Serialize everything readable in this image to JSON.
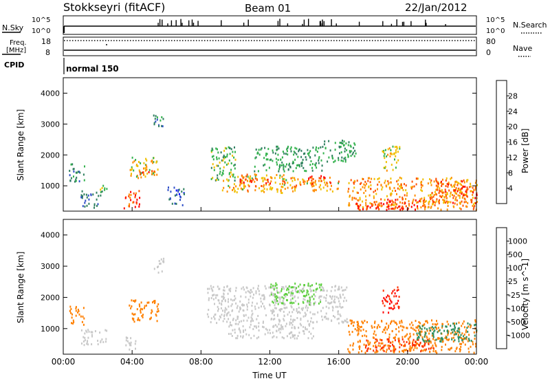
{
  "header": {
    "station": "Stokkseyri (fitACF)",
    "beam": "Beam 01",
    "date": "22/Jan/2012"
  },
  "top_panels": {
    "nsky": {
      "label": "N.Sky",
      "ticks_left": [
        "10^5",
        "10^0"
      ],
      "ticks_right": [
        "10^5",
        "10^0"
      ],
      "right_label": "N.Search"
    },
    "freq": {
      "label_top": "Freq.",
      "label_unit": "[MHz]",
      "ticks_left": [
        "18",
        "8"
      ],
      "ticks_right": [
        "80",
        "0"
      ],
      "right_label": "Nave"
    },
    "cpid": {
      "label": "CPID",
      "value": "normal 150"
    }
  },
  "chart_data": [
    {
      "type": "heatmap",
      "name": "power",
      "ylabel": "Slant Range [km]",
      "xlabel": "",
      "xlim": [
        "00:00",
        "00:00"
      ],
      "ylim": [
        180,
        4500
      ],
      "yticks": [
        1000,
        2000,
        3000,
        4000
      ],
      "xtick_labels": [
        "00:00",
        "04:00",
        "08:00",
        "12:00",
        "16:00",
        "20:00",
        "00:00"
      ],
      "colorbar": {
        "label": "Power [dB]",
        "ticks": [
          4,
          8,
          12,
          16,
          20,
          24,
          28
        ],
        "colors": [
          "#0000ff",
          "#2f4fc8",
          "#2f7f5f",
          "#33b24d",
          "#f0c000",
          "#ff8c00",
          "#ff5000",
          "#ff0000"
        ]
      },
      "echo_regions": [
        {
          "t0": 0.3,
          "t1": 1.2,
          "r0": 1150,
          "r1": 1750,
          "value": 10
        },
        {
          "t0": 1.0,
          "t1": 2.0,
          "r0": 300,
          "r1": 900,
          "value": 9
        },
        {
          "t0": 2.0,
          "t1": 2.6,
          "r0": 700,
          "r1": 1050,
          "value": 14
        },
        {
          "t0": 3.5,
          "t1": 4.4,
          "r0": 250,
          "r1": 900,
          "value": 26
        },
        {
          "t0": 3.8,
          "t1": 5.5,
          "r0": 1250,
          "r1": 1950,
          "value": 18
        },
        {
          "t0": 4.3,
          "t1": 5.3,
          "r0": 1350,
          "r1": 1600,
          "value": 25
        },
        {
          "t0": 5.2,
          "t1": 5.8,
          "r0": 2800,
          "r1": 3350,
          "value": 10
        },
        {
          "t0": 6.0,
          "t1": 7.0,
          "r0": 400,
          "r1": 1000,
          "value": 6
        },
        {
          "t0": 8.5,
          "t1": 10.0,
          "r0": 1200,
          "r1": 2300,
          "value": 14
        },
        {
          "t0": 9.2,
          "t1": 12.8,
          "r0": 800,
          "r1": 1400,
          "value": 20
        },
        {
          "t0": 10.2,
          "t1": 12.0,
          "r0": 1000,
          "r1": 1300,
          "value": 27
        },
        {
          "t0": 11.0,
          "t1": 15.0,
          "r0": 1500,
          "r1": 2300,
          "value": 12
        },
        {
          "t0": 12.5,
          "t1": 16.0,
          "r0": 850,
          "r1": 1300,
          "value": 21
        },
        {
          "t0": 14.0,
          "t1": 15.5,
          "r0": 1050,
          "r1": 1350,
          "value": 27
        },
        {
          "t0": 15.0,
          "t1": 17.0,
          "r0": 1800,
          "r1": 2500,
          "value": 12
        },
        {
          "t0": 16.5,
          "t1": 24.0,
          "r0": 250,
          "r1": 1300,
          "value": 22
        },
        {
          "t0": 17.0,
          "t1": 21.0,
          "r0": 250,
          "r1": 600,
          "value": 28
        },
        {
          "t0": 18.5,
          "t1": 19.5,
          "r0": 1500,
          "r1": 2400,
          "value": 17
        },
        {
          "t0": 21.5,
          "t1": 24.0,
          "r0": 400,
          "r1": 1200,
          "value": 25
        }
      ]
    },
    {
      "type": "heatmap",
      "name": "velocity",
      "ylabel": "Slant Range [km]",
      "xlabel": "Time UT",
      "xlim": [
        "00:00",
        "00:00"
      ],
      "ylim": [
        180,
        4500
      ],
      "yticks": [
        1000,
        2000,
        3000,
        4000
      ],
      "xtick_labels": [
        "00:00",
        "04:00",
        "08:00",
        "12:00",
        "16:00",
        "20:00",
        "00:00"
      ],
      "colorbar": {
        "label": "Velocity [m s^-1]",
        "ticks": [
          1000,
          500,
          100,
          25,
          -25,
          -100,
          -500,
          -1000
        ],
        "colors": [
          "#2030c0",
          "#2f6fa0",
          "#2f8f5f",
          "#5fd040",
          "#c8c8c8",
          "#f0a030",
          "#ff8000",
          "#ff3000",
          "#ff0000"
        ]
      },
      "echo_regions": [
        {
          "t0": 0.3,
          "t1": 1.2,
          "r0": 1150,
          "r1": 1750,
          "value": -150
        },
        {
          "t0": 1.0,
          "t1": 2.5,
          "r0": 500,
          "r1": 1000,
          "value": 0
        },
        {
          "t0": 3.8,
          "t1": 5.5,
          "r0": 1250,
          "r1": 1950,
          "value": -200
        },
        {
          "t0": 3.5,
          "t1": 4.2,
          "r0": 300,
          "r1": 800,
          "value": 0
        },
        {
          "t0": 5.2,
          "t1": 5.8,
          "r0": 2800,
          "r1": 3300,
          "value": 0
        },
        {
          "t0": 8.3,
          "t1": 16.5,
          "r0": 1200,
          "r1": 2400,
          "value": 0
        },
        {
          "t0": 9.5,
          "t1": 14.5,
          "r0": 700,
          "r1": 1200,
          "value": 0
        },
        {
          "t0": 12.0,
          "t1": 15.0,
          "r0": 1800,
          "r1": 2500,
          "value": 50
        },
        {
          "t0": 16.5,
          "t1": 24.0,
          "r0": 250,
          "r1": 1300,
          "value": -200
        },
        {
          "t0": 17.5,
          "t1": 21.5,
          "r0": 300,
          "r1": 700,
          "value": -600
        },
        {
          "t0": 18.5,
          "t1": 19.5,
          "r0": 1500,
          "r1": 2400,
          "value": -1000
        },
        {
          "t0": 20.5,
          "t1": 24.0,
          "r0": 600,
          "r1": 1200,
          "value": 200
        }
      ]
    }
  ]
}
